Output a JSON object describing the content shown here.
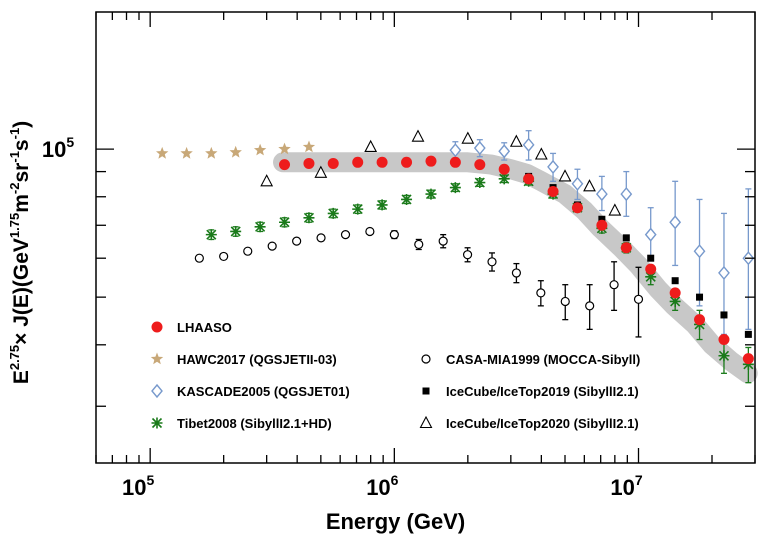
{
  "chart_data": {
    "type": "scatter",
    "xlabel": "Energy (GeV)",
    "ylabel_main": "E",
    "ylabel_sup1": "2.75",
    "ylabel_mid": "× J(E)(GeV",
    "ylabel_sup2": "1.75",
    "ylabel_unit": "m",
    "ylabel_sup3": "-2",
    "ylabel_sr": "sr",
    "ylabel_sup4": "-1",
    "ylabel_s": "s",
    "ylabel_sup5": "-1",
    "ylabel_close": ")",
    "x_scale": "log",
    "y_scale": "log",
    "xlim": [
      60000,
      30000000
    ],
    "ylim": [
      23000,
      190000
    ],
    "x_ticks": [
      {
        "base": "10",
        "exp": "5",
        "value": 100000
      },
      {
        "base": "10",
        "exp": "6",
        "value": 1000000
      },
      {
        "base": "10",
        "exp": "7",
        "value": 10000000
      }
    ],
    "y_ticks": [
      {
        "base": "10",
        "exp": "5",
        "value": 100000
      }
    ],
    "grid": false,
    "legend_position": "bottom",
    "band": {
      "name": "LHAASO uncertainty band",
      "color": "#c8c8c8",
      "x": [
        350000,
        500000,
        700000,
        1000000,
        1500000,
        2000000,
        2500000,
        3000000,
        3500000,
        4000000,
        5000000,
        6000000,
        7000000,
        8500000,
        10000000,
        12000000,
        14000000,
        17000000,
        20000000,
        24000000,
        28000000
      ],
      "y": [
        94000,
        94000,
        94000,
        94000,
        94000,
        94000,
        93000,
        91000,
        89000,
        86000,
        81000,
        75000,
        69000,
        63000,
        58000,
        52000,
        48000,
        44000,
        40000,
        37000,
        35000
      ]
    },
    "series": [
      {
        "name": "LHAASO",
        "marker": "circle-filled",
        "color": "#ee1c1c",
        "x": [
          355000,
          447000,
          562000,
          708000,
          891000,
          1122000,
          1413000,
          1778000,
          2239000,
          2818000,
          3548000,
          4467000,
          5623000,
          7079000,
          8913000,
          11220000,
          14130000,
          17780000,
          22390000,
          28180000
        ],
        "y": [
          93000,
          93500,
          93500,
          94000,
          94000,
          94000,
          94500,
          94000,
          93000,
          91000,
          87000,
          82000,
          76000,
          70000,
          63000,
          57000,
          51000,
          45000,
          41000,
          37500
        ]
      },
      {
        "name": "HAWC2017 (QGSJETII-03)",
        "marker": "star",
        "color": "#c8a878",
        "x": [
          112000,
          141000,
          178000,
          224000,
          282000,
          355000,
          447000
        ],
        "y": [
          98000,
          98000,
          98000,
          98500,
          99500,
          100000,
          101000
        ]
      },
      {
        "name": "KASCADE2005 (QGSJET01)",
        "marker": "diamond-open",
        "color": "#7799cc",
        "x": [
          1778000,
          2239000,
          2818000,
          3548000,
          4467000,
          5623000,
          7079000,
          8913000,
          11220000,
          14130000,
          17780000,
          22390000,
          28180000
        ],
        "y": [
          99500,
          100500,
          99000,
          102000,
          92000,
          85000,
          81000,
          81000,
          67000,
          71000,
          62000,
          56000,
          60000
        ],
        "err_low": [
          4000,
          4000,
          4000,
          7000,
          6000,
          6000,
          6000,
          8000,
          7000,
          13000,
          14000,
          14000,
          17000
        ],
        "err_high": [
          4000,
          4000,
          4000,
          7000,
          6000,
          6000,
          7000,
          9000,
          9000,
          15000,
          17000,
          18000,
          23000
        ]
      },
      {
        "name": "Tibet2008 (SibyllI2.1+HD)",
        "marker": "asterisk",
        "color": "#1a7a1a",
        "x": [
          178000,
          224000,
          282000,
          355000,
          447000,
          562000,
          708000,
          891000,
          1122000,
          1413000,
          1778000,
          2239000,
          2818000,
          3548000,
          4467000,
          5623000,
          7079000,
          8913000,
          11220000,
          14130000,
          17780000,
          22390000,
          28180000
        ],
        "y": [
          67000,
          68000,
          69500,
          71000,
          72500,
          74000,
          75500,
          77000,
          79000,
          81000,
          83500,
          85500,
          87000,
          86000,
          81000,
          76000,
          69000,
          63000,
          55000,
          49000,
          44000,
          38000,
          36500
        ],
        "err_low": [
          1500,
          1500,
          1500,
          1500,
          1500,
          1500,
          1500,
          1500,
          1500,
          1500,
          1500,
          1500,
          1500,
          1500,
          1500,
          1500,
          1500,
          1500,
          2000,
          2000,
          3000,
          3000,
          3000
        ],
        "err_high": [
          1500,
          1500,
          1500,
          1500,
          1500,
          1500,
          1500,
          1500,
          1500,
          1500,
          1500,
          1500,
          1500,
          1500,
          1500,
          1500,
          1500,
          1500,
          2000,
          2000,
          3000,
          3000,
          3000
        ]
      },
      {
        "name": "CASA-MIA1999 (MOCCA-Sibyll)",
        "marker": "circle-open",
        "color": "#000000",
        "x": [
          159000,
          200000,
          251000,
          316000,
          398000,
          501000,
          631000,
          794000,
          1000000,
          1259000,
          1585000,
          1995000,
          2512000,
          3162000,
          3981000,
          5012000,
          6310000,
          7943000,
          10000000
        ],
        "y": [
          60000,
          60500,
          62000,
          63500,
          65000,
          66000,
          67000,
          68000,
          67000,
          64000,
          65000,
          61000,
          59000,
          56000,
          51000,
          49000,
          48000,
          53000,
          49500
        ],
        "err_low": [
          600,
          600,
          600,
          600,
          600,
          600,
          600,
          800,
          1200,
          1500,
          2000,
          2000,
          2500,
          2500,
          3000,
          4000,
          5000,
          6000,
          8000
        ],
        "err_high": [
          600,
          600,
          600,
          600,
          600,
          600,
          600,
          800,
          1200,
          1500,
          2000,
          2000,
          2500,
          2500,
          3000,
          4000,
          5000,
          6000,
          8000
        ]
      },
      {
        "name": "IceCube/IceTop2019 (SibyllI2.1)",
        "marker": "square-filled",
        "color": "#000000",
        "x": [
          3548000,
          4467000,
          5623000,
          7079000,
          8913000,
          11220000,
          14130000,
          17780000,
          22390000,
          28180000
        ],
        "y": [
          88000,
          83500,
          77000,
          72000,
          66000,
          60000,
          54000,
          50000,
          46000,
          42000
        ]
      },
      {
        "name": "IceCube/IceTop2020 (SibyllI2.1)",
        "marker": "triangle-open",
        "color": "#000000",
        "x": [
          300000,
          500000,
          800000,
          1250000,
          2000000,
          3160000,
          4000000,
          5000000,
          6300000,
          8000000
        ],
        "y": [
          86000,
          89500,
          101000,
          106000,
          105000,
          103500,
          97500,
          88000,
          84000,
          75000
        ]
      }
    ]
  }
}
